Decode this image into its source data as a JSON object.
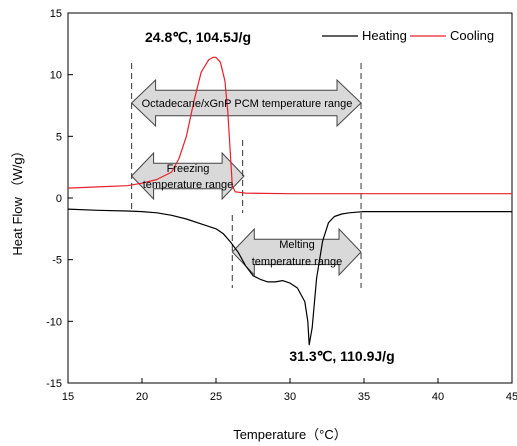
{
  "chart_data": {
    "type": "line",
    "xlabel": "Temperature（°C）",
    "ylabel": "Heat Flow （W/g）",
    "xlim": [
      15,
      45
    ],
    "ylim": [
      -15,
      15
    ],
    "xticks": [
      15,
      20,
      25,
      30,
      35,
      40,
      45
    ],
    "yticks": [
      -15,
      -10,
      -5,
      0,
      5,
      10,
      15
    ],
    "grid": false,
    "legend_position": "top-right",
    "series": [
      {
        "name": "Heating",
        "color": "#000000",
        "x": [
          15,
          17,
          19,
          20,
          21,
          22,
          23,
          24,
          25,
          25.5,
          26,
          26.5,
          27,
          27.5,
          28,
          28.5,
          29,
          29.5,
          30,
          30.5,
          31,
          31.2,
          31.3,
          31.5,
          31.8,
          32.2,
          32.6,
          33,
          33.5,
          34,
          34.5,
          35,
          37,
          40,
          45
        ],
        "y": [
          -0.9,
          -1.0,
          -1.05,
          -1.1,
          -1.2,
          -1.4,
          -1.7,
          -2.1,
          -2.5,
          -2.9,
          -3.6,
          -4.4,
          -5.5,
          -6.3,
          -6.6,
          -6.8,
          -6.8,
          -6.7,
          -6.9,
          -7.3,
          -8.4,
          -10.0,
          -11.9,
          -10.5,
          -6.5,
          -3.5,
          -2.0,
          -1.5,
          -1.3,
          -1.2,
          -1.15,
          -1.1,
          -1.1,
          -1.1,
          -1.1
        ]
      },
      {
        "name": "Cooling",
        "color": "#e8202a",
        "x": [
          15,
          17,
          19,
          20,
          21,
          22,
          22.5,
          23,
          23.5,
          24,
          24.5,
          24.8,
          25,
          25.3,
          25.6,
          25.8,
          26,
          26.1,
          26.3,
          27,
          30,
          35,
          40,
          45
        ],
        "y": [
          0.8,
          0.9,
          1.0,
          1.2,
          1.5,
          2.1,
          3.2,
          5.0,
          7.8,
          10.2,
          11.2,
          11.4,
          11.4,
          11.0,
          9.5,
          7.0,
          3.0,
          1.0,
          0.5,
          0.4,
          0.35,
          0.35,
          0.35,
          0.35
        ]
      }
    ],
    "annotations": {
      "peak_cooling": "24.8℃, 104.5J/g",
      "peak_heating": "31.3℃,  110.9J/g",
      "pcm_range": "Octadecane/xGnP PCM temperature range",
      "freezing_line1": "Freezing",
      "freezing_line2": "temperature range",
      "melting_line1": "Melting",
      "melting_line2": "temperature range"
    },
    "ranges": {
      "pcm": [
        19.3,
        34.8
      ],
      "freezing": [
        19.3,
        26.8
      ],
      "melting": [
        26.1,
        34.8
      ]
    }
  }
}
